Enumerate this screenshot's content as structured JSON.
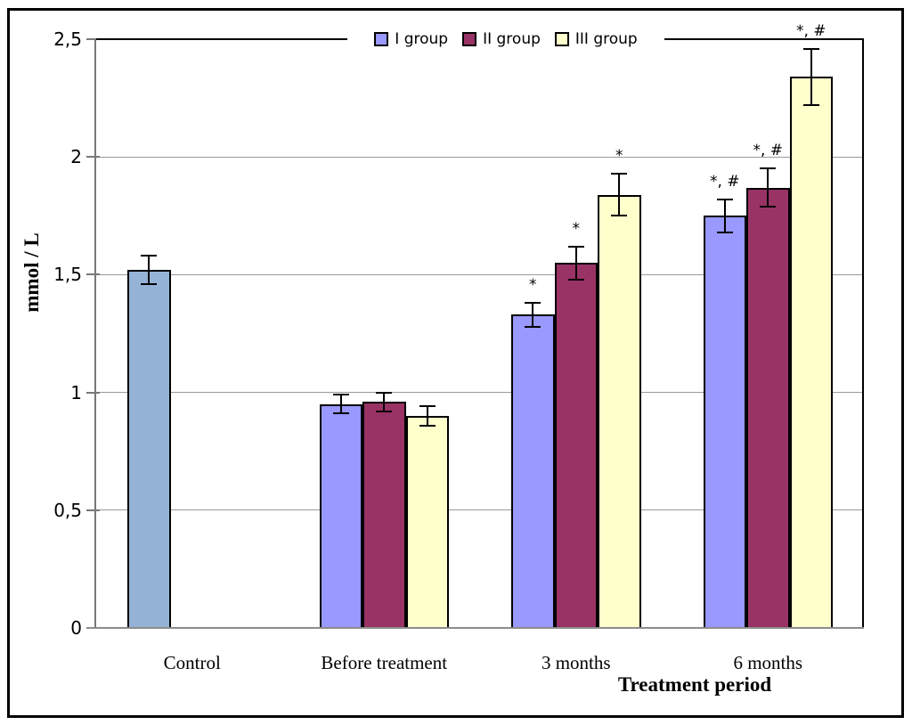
{
  "chart_data": {
    "type": "bar",
    "title": "",
    "xlabel": "Treatment period",
    "ylabel": "mmol / L",
    "ylim": [
      0,
      2.5
    ],
    "grid": true,
    "legend_position": "top-center",
    "decimal_separator": ",",
    "axis_colors": {
      "gridline": "#9a9a9a",
      "axis": "#808080",
      "plot_border": "#000000"
    },
    "y_ticks": [
      {
        "value": 0,
        "label": "0"
      },
      {
        "value": 0.5,
        "label": "0,5"
      },
      {
        "value": 1,
        "label": "1"
      },
      {
        "value": 1.5,
        "label": "1,5"
      },
      {
        "value": 2,
        "label": "2"
      },
      {
        "value": 2.5,
        "label": "2,5"
      }
    ],
    "legend": [
      {
        "label": "I group",
        "color": "#9999FF"
      },
      {
        "label": "II group",
        "color": "#993366"
      },
      {
        "label": "III group",
        "color": "#FFFFCC"
      }
    ],
    "categories": [
      "Control",
      "Before treatment",
      "3 months",
      "6 months"
    ],
    "groups": [
      {
        "category": "Control",
        "bars": [
          {
            "series": "Control",
            "slot": 0,
            "color": "#95B3D7",
            "value": 1.52,
            "error": 0.06,
            "annotation": ""
          }
        ]
      },
      {
        "category": "Before treatment",
        "bars": [
          {
            "series": "I group",
            "slot": 0,
            "color": "#9999FF",
            "value": 0.95,
            "error": 0.04,
            "annotation": ""
          },
          {
            "series": "II group",
            "slot": 1,
            "color": "#993366",
            "value": 0.96,
            "error": 0.04,
            "annotation": ""
          },
          {
            "series": "III group",
            "slot": 2,
            "color": "#FFFFCC",
            "value": 0.9,
            "error": 0.04,
            "annotation": ""
          }
        ]
      },
      {
        "category": "3 months",
        "bars": [
          {
            "series": "I group",
            "slot": 0,
            "color": "#9999FF",
            "value": 1.33,
            "error": 0.05,
            "annotation": "*"
          },
          {
            "series": "II group",
            "slot": 1,
            "color": "#993366",
            "value": 1.55,
            "error": 0.07,
            "annotation": "*"
          },
          {
            "series": "III group",
            "slot": 2,
            "color": "#FFFFCC",
            "value": 1.84,
            "error": 0.09,
            "annotation": "*"
          }
        ]
      },
      {
        "category": "6 months",
        "bars": [
          {
            "series": "I group",
            "slot": 0,
            "color": "#9999FF",
            "value": 1.75,
            "error": 0.07,
            "annotation": "*, #"
          },
          {
            "series": "II group",
            "slot": 1,
            "color": "#993366",
            "value": 1.87,
            "error": 0.08,
            "annotation": "*, #"
          },
          {
            "series": "III group",
            "slot": 2,
            "color": "#FFFFCC",
            "value": 2.34,
            "error": 0.12,
            "annotation": "*, #"
          }
        ]
      }
    ]
  }
}
